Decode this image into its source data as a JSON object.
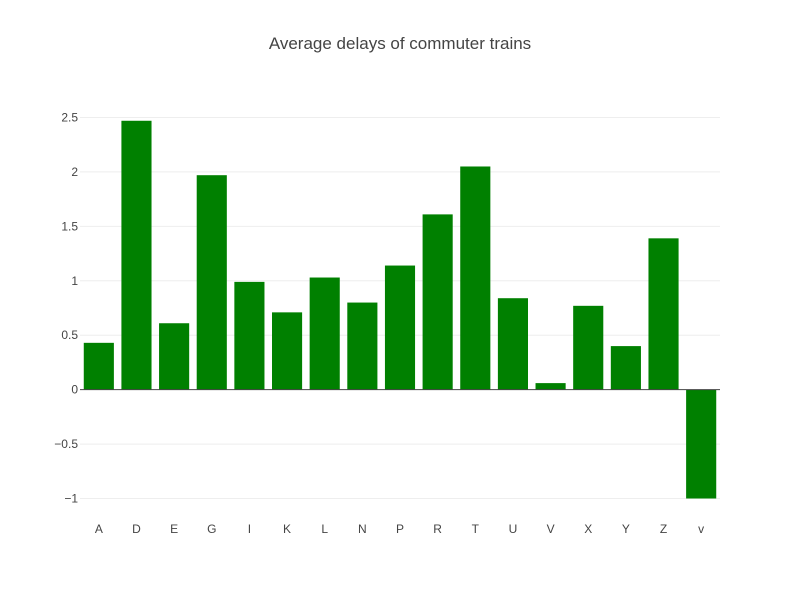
{
  "chart_data": {
    "type": "bar",
    "title": "Average delays of commuter trains",
    "xlabel": "",
    "ylabel": "",
    "categories": [
      "A",
      "D",
      "E",
      "G",
      "I",
      "K",
      "L",
      "N",
      "P",
      "R",
      "T",
      "U",
      "V",
      "X",
      "Y",
      "Z",
      "v"
    ],
    "values": [
      0.43,
      2.47,
      0.61,
      1.97,
      0.99,
      0.71,
      1.03,
      0.8,
      1.14,
      1.61,
      2.05,
      0.84,
      0.06,
      0.77,
      0.4,
      1.39,
      -1.0
    ],
    "ylim": [
      -1.0,
      2.5
    ],
    "yticks": [
      -1,
      -0.5,
      0,
      0.5,
      1,
      1.5,
      2,
      2.5
    ],
    "ytick_labels": [
      "−1",
      "−0.5",
      "0",
      "0.5",
      "1",
      "1.5",
      "2",
      "2.5"
    ],
    "bar_color": "#008000",
    "grid": true,
    "legend": "none"
  }
}
